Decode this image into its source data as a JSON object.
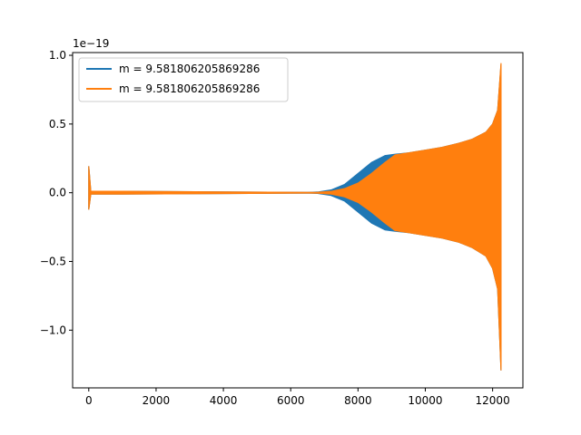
{
  "chart_data": {
    "type": "line",
    "title": "",
    "xlabel": "",
    "ylabel": "",
    "y_offset_text": "1e−19",
    "y_scale": 1e-19,
    "xlim": [
      -480,
      12900
    ],
    "ylim": [
      -1.42,
      1.02
    ],
    "x_ticks": [
      0,
      2000,
      4000,
      6000,
      8000,
      10000,
      12000
    ],
    "x_tick_labels": [
      "0",
      "2000",
      "4000",
      "6000",
      "8000",
      "10000",
      "12000"
    ],
    "y_ticks": [
      1.0,
      0.5,
      0.0,
      -0.5,
      -1.0
    ],
    "y_tick_labels": [
      "1.0",
      "0.5",
      "0.0",
      "−0.5",
      "−1.0"
    ],
    "grid": false,
    "legend_position": "upper-left",
    "series": [
      {
        "name": "m = 9.581806205869286",
        "color": "#1f77b4",
        "envelope": {
          "x": [
            0,
            60,
            1000,
            6500,
            6800,
            7200,
            7600,
            8000,
            8400,
            8800,
            9100,
            9500,
            10000,
            10500,
            11000,
            11400,
            11800,
            12000,
            12150,
            12250
          ],
          "upper": [
            0.19,
            0.01,
            0.01,
            0.002,
            0.005,
            0.02,
            0.06,
            0.14,
            0.22,
            0.27,
            0.28,
            0.29,
            0.31,
            0.33,
            0.36,
            0.39,
            0.44,
            0.5,
            0.6,
            0.93
          ],
          "lower": [
            -0.12,
            -0.01,
            -0.01,
            -0.002,
            -0.005,
            -0.02,
            -0.06,
            -0.14,
            -0.22,
            -0.27,
            -0.28,
            -0.29,
            -0.31,
            -0.33,
            -0.36,
            -0.4,
            -0.46,
            -0.55,
            -0.7,
            -1.29
          ]
        }
      },
      {
        "name": "m = 9.581806205869286",
        "color": "#ff7f0e",
        "envelope": {
          "x": [
            0,
            60,
            1000,
            6500,
            6800,
            7200,
            7600,
            8000,
            8400,
            8800,
            9100,
            9500,
            10000,
            10500,
            11000,
            11400,
            11800,
            12000,
            12150,
            12250
          ],
          "upper": [
            0.19,
            0.01,
            0.01,
            0.002,
            0.003,
            0.01,
            0.03,
            0.07,
            0.14,
            0.22,
            0.275,
            0.29,
            0.31,
            0.33,
            0.36,
            0.39,
            0.44,
            0.5,
            0.6,
            0.94
          ],
          "lower": [
            -0.12,
            -0.01,
            -0.01,
            -0.002,
            -0.003,
            -0.01,
            -0.03,
            -0.07,
            -0.14,
            -0.22,
            -0.275,
            -0.29,
            -0.31,
            -0.33,
            -0.36,
            -0.4,
            -0.46,
            -0.55,
            -0.7,
            -1.29
          ]
        }
      }
    ]
  }
}
